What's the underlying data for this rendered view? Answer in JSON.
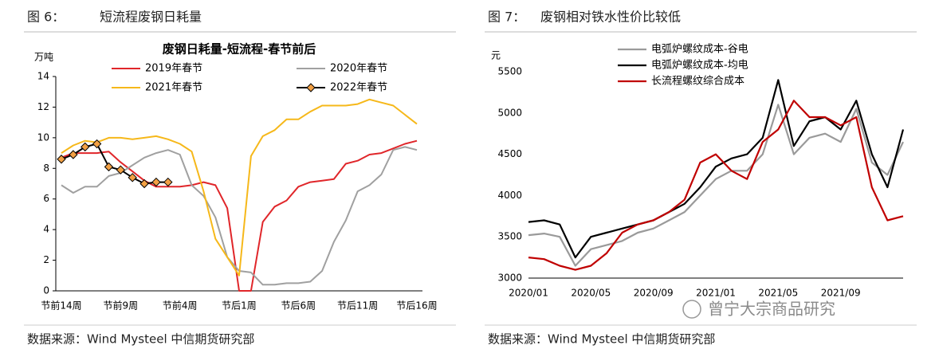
{
  "panels": [
    {
      "figure_label": "图 6：",
      "figure_title": "短流程废钢日耗量",
      "source": "数据来源：Wind Mysteel 中信期货研究部"
    },
    {
      "figure_label": "图 7：",
      "figure_title": "废钢相对铁水性价比较低",
      "source": "数据来源：Wind Mysteel 中信期货研究部"
    }
  ],
  "watermark": "曾宁大宗商品研究",
  "chart_data": [
    {
      "type": "line",
      "title": "废钢日耗量-短流程-春节前后",
      "y_label": "万吨",
      "categories": [
        "节前14周",
        null,
        null,
        null,
        null,
        "节前9周",
        null,
        null,
        null,
        null,
        "节前4周",
        null,
        null,
        null,
        null,
        "节后1周",
        null,
        null,
        null,
        null,
        "节后6周",
        null,
        null,
        null,
        null,
        "节后11周",
        null,
        null,
        null,
        null,
        "节后16周"
      ],
      "ylim": [
        0,
        14
      ],
      "yticks": [
        0,
        2,
        4,
        6,
        8,
        10,
        12,
        14
      ],
      "series": [
        {
          "name": "2019年春节",
          "color": "#e0262a",
          "values": [
            8.7,
            9.0,
            9.0,
            9.0,
            9.1,
            8.4,
            7.8,
            7.2,
            6.8,
            6.8,
            6.8,
            6.9,
            7.1,
            6.9,
            5.4,
            0,
            0,
            4.5,
            5.5,
            5.9,
            6.8,
            7.1,
            7.2,
            7.3,
            8.3,
            8.5,
            8.9,
            9.0,
            9.3,
            9.6,
            9.8
          ]
        },
        {
          "name": "2020年春节",
          "color": "#a0a0a0",
          "values": [
            6.9,
            6.4,
            6.8,
            6.8,
            7.5,
            7.7,
            8.2,
            8.7,
            9.0,
            9.2,
            8.9,
            6.9,
            6.2,
            4.8,
            2.2,
            1.3,
            1.2,
            0.4,
            0.4,
            0.5,
            0.5,
            0.6,
            1.3,
            3.2,
            4.6,
            6.5,
            6.9,
            7.6,
            9.2,
            9.4,
            9.2
          ]
        },
        {
          "name": "2021年春节",
          "color": "#f6b81a",
          "values": [
            9.0,
            9.5,
            9.8,
            9.7,
            10.0,
            10.0,
            9.9,
            10.0,
            10.1,
            9.9,
            9.6,
            9.1,
            6.5,
            3.4,
            2.2,
            1.0,
            8.8,
            10.1,
            10.5,
            11.2,
            11.2,
            11.7,
            12.1,
            12.1,
            12.1,
            12.2,
            12.5,
            12.3,
            12.1,
            11.5,
            10.9
          ]
        },
        {
          "name": "2022年春节",
          "color": "#000000",
          "marker": "diamond",
          "marker_color": "#f2a044",
          "values": [
            8.6,
            8.9,
            9.4,
            9.6,
            8.1,
            7.9,
            7.4,
            7.0,
            7.1,
            7.1,
            null,
            null,
            null,
            null,
            null,
            null,
            null,
            null,
            null,
            null,
            null,
            null,
            null,
            null,
            null,
            null,
            null,
            null,
            null,
            null,
            null
          ]
        }
      ]
    },
    {
      "type": "line",
      "y_label": "元",
      "categories": [
        "2020/01",
        null,
        null,
        null,
        "2020/05",
        null,
        null,
        null,
        "2020/09",
        null,
        null,
        null,
        "2021/01",
        null,
        null,
        null,
        "2021/05",
        null,
        null,
        null,
        "2021/09",
        null,
        null,
        null,
        null
      ],
      "ylim": [
        3000,
        5500
      ],
      "yticks": [
        3000,
        3500,
        4000,
        4500,
        5000,
        5500
      ],
      "series": [
        {
          "name": "电弧炉螺纹成本-谷电",
          "color": "#9a9a9a",
          "values": [
            3520,
            3540,
            3500,
            3150,
            3350,
            3400,
            3450,
            3550,
            3600,
            3700,
            3800,
            4000,
            4200,
            4300,
            4300,
            4500,
            5100,
            4500,
            4700,
            4750,
            4650,
            5050,
            4400,
            4250,
            4650
          ]
        },
        {
          "name": "电弧炉螺纹成本-均电",
          "color": "#000000",
          "values": [
            3680,
            3700,
            3650,
            3250,
            3500,
            3550,
            3600,
            3650,
            3700,
            3800,
            3900,
            4100,
            4350,
            4450,
            4500,
            4700,
            5400,
            4600,
            4900,
            4950,
            4800,
            5150,
            4500,
            4100,
            4800
          ]
        },
        {
          "name": "长流程螺纹综合成本",
          "color": "#c00000",
          "values": [
            3250,
            3230,
            3150,
            3100,
            3150,
            3300,
            3550,
            3650,
            3700,
            3800,
            3950,
            4400,
            4500,
            4300,
            4200,
            4650,
            4800,
            5150,
            4950,
            4950,
            4850,
            4950,
            4100,
            3700,
            3750
          ]
        }
      ]
    }
  ]
}
